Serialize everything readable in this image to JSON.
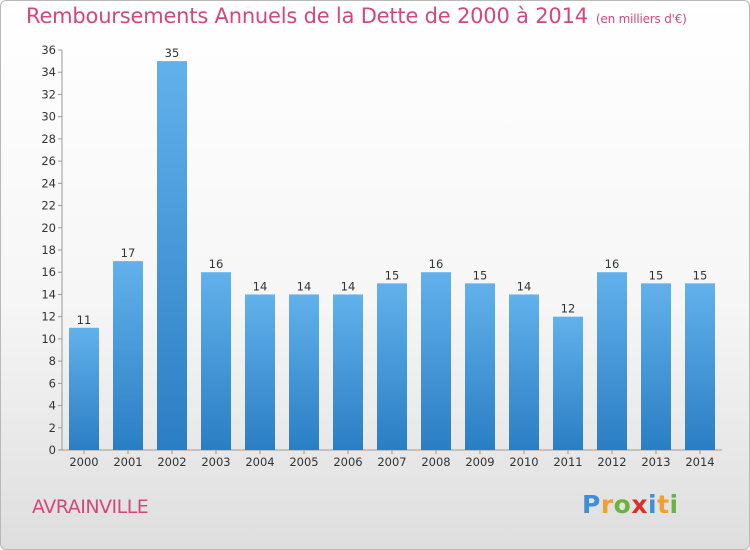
{
  "header": {
    "title": "Remboursements Annuels de la Dette de 2000 à 2014",
    "unit": "(en milliers d'€)"
  },
  "footer": {
    "town": "AVRAINVILLE",
    "logo": "Proxiti"
  },
  "colors": {
    "title": "#d4477c",
    "bar_top": "#62b1ec",
    "bar_bottom": "#2a7ec3"
  },
  "chart_data": {
    "type": "bar",
    "title": "Remboursements Annuels de la Dette de 2000 à 2014",
    "categories": [
      "2000",
      "2001",
      "2002",
      "2003",
      "2004",
      "2005",
      "2006",
      "2007",
      "2008",
      "2009",
      "2010",
      "2011",
      "2012",
      "2013",
      "2014"
    ],
    "values": [
      11,
      17,
      35,
      16,
      14,
      14,
      14,
      15,
      16,
      15,
      14,
      12,
      16,
      15,
      15
    ],
    "ylim": [
      0,
      36
    ],
    "yticks": [
      0,
      2,
      4,
      6,
      8,
      10,
      12,
      14,
      16,
      18,
      20,
      22,
      24,
      26,
      28,
      30,
      32,
      34,
      36
    ],
    "grid": false,
    "data_labels": true
  }
}
